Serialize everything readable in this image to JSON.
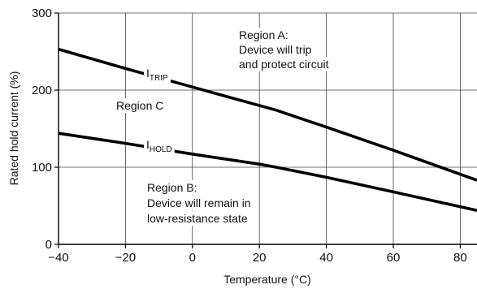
{
  "chart_data": {
    "type": "line",
    "xlabel": "Temperature (°C)",
    "ylabel": "Rated hold current (%)",
    "xlim": [
      -40,
      85
    ],
    "ylim": [
      0,
      300
    ],
    "xticks": [
      -40,
      -20,
      0,
      20,
      40,
      60,
      80
    ],
    "xtick_labels": [
      "−40",
      "−20",
      "0",
      "20",
      "40",
      "60",
      "80"
    ],
    "yticks": [
      0,
      100,
      200,
      300
    ],
    "ytick_labels": [
      "0",
      "100",
      "200",
      "300"
    ],
    "grid": true,
    "series": [
      {
        "name_main": "I",
        "name_sub": "TRIP",
        "x": [
          -40,
          -20,
          0,
          20,
          25,
          40,
          60,
          85
        ],
        "y": [
          253,
          228,
          204,
          180,
          174,
          152,
          122,
          83
        ]
      },
      {
        "name_main": "I",
        "name_sub": "HOLD",
        "x": [
          -40,
          -20,
          0,
          20,
          25,
          40,
          60,
          85
        ],
        "y": [
          144,
          131,
          117,
          104,
          100,
          87,
          68,
          44
        ]
      }
    ],
    "annotations": {
      "region_a": [
        "Region A:",
        "Device will trip",
        "and protect circuit"
      ],
      "region_b": [
        "Region B:",
        "Device will remain in",
        "low-resistance state"
      ],
      "region_c": [
        "Region C"
      ]
    }
  }
}
